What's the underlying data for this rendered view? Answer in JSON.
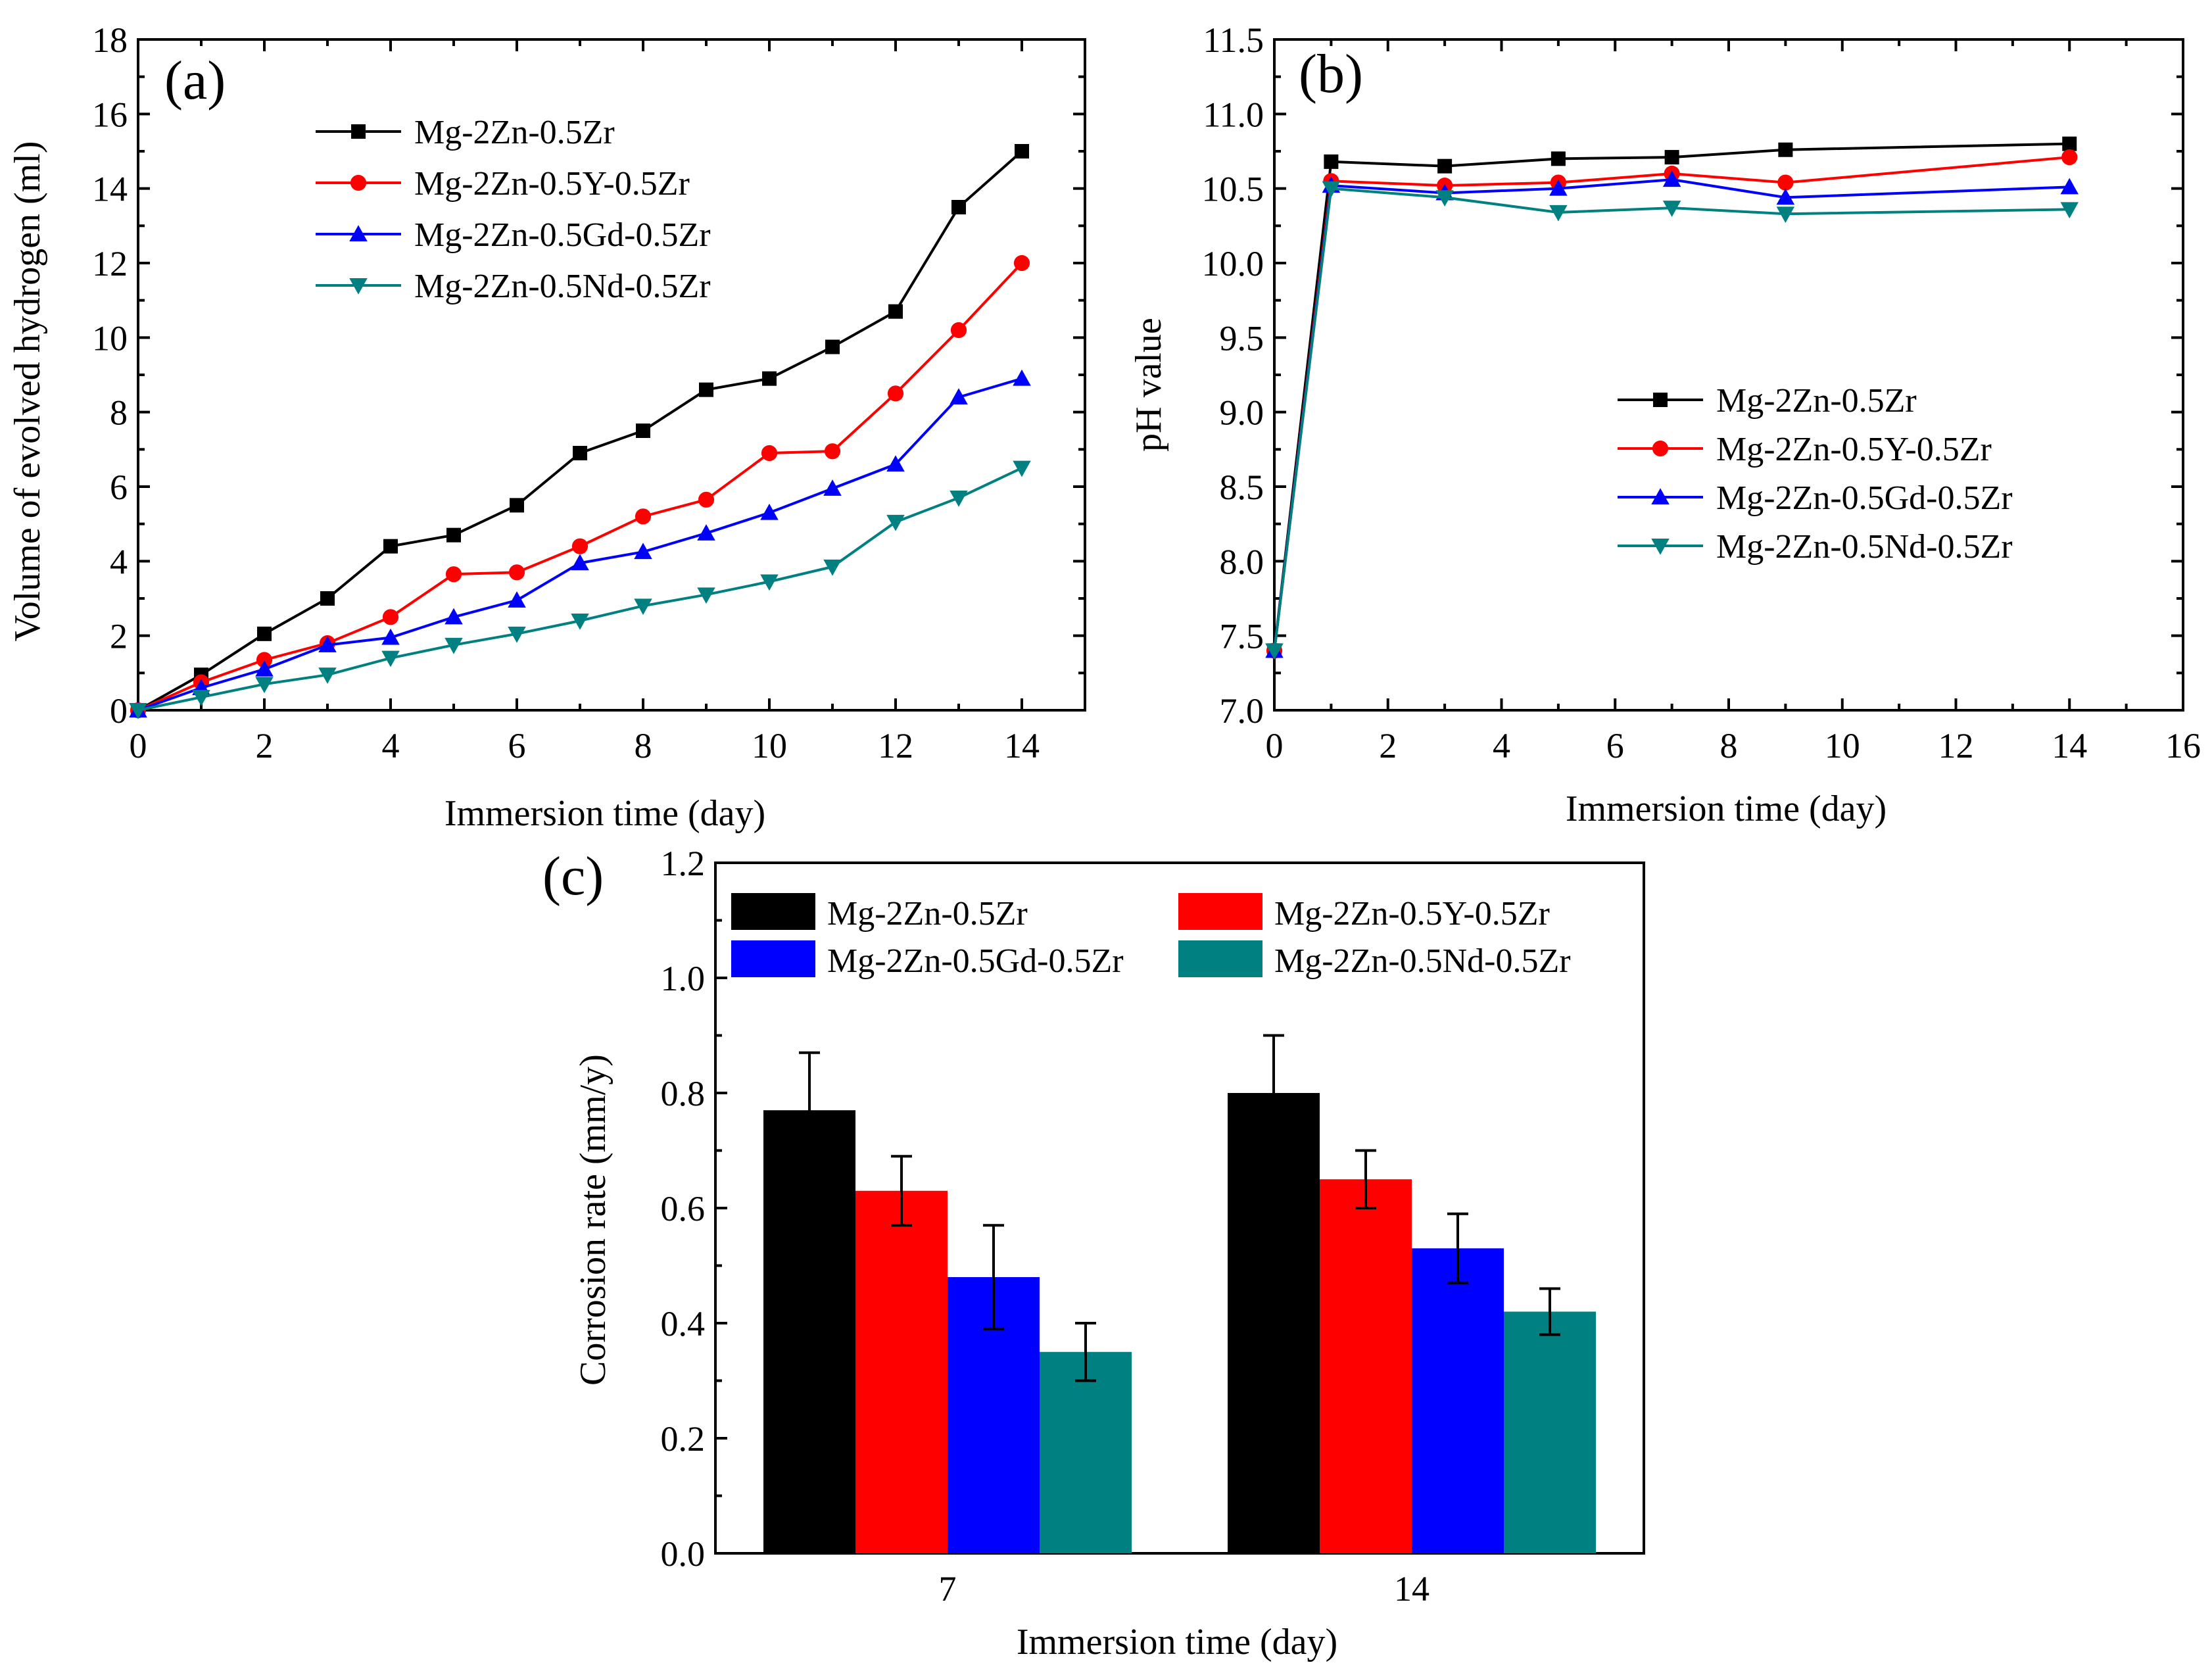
{
  "colors": {
    "Mg-2Zn-0.5Zr": "#000000",
    "Mg-2Zn-0.5Y-0.5Zr": "#ff0000",
    "Mg-2Zn-0.5Gd-0.5Zr": "#0000ff",
    "Mg-2Zn-0.5Nd-0.5Zr": "#008080"
  },
  "chart_data": [
    {
      "panel": "(a)",
      "type": "line",
      "xlabel": "Immersion time (day)",
      "ylabel": "Volume of evolved hydrogen (ml)",
      "xlim": [
        0,
        15
      ],
      "ylim": [
        0,
        18
      ],
      "xticks": [
        0,
        2,
        4,
        6,
        8,
        10,
        12,
        14
      ],
      "yticks": [
        0,
        2,
        4,
        6,
        8,
        10,
        12,
        14,
        16,
        18
      ],
      "legend_position": "top-left",
      "x": [
        0,
        1,
        2,
        3,
        4,
        5,
        6,
        7,
        8,
        9,
        10,
        11,
        12,
        13,
        14
      ],
      "series": [
        {
          "name": "Mg-2Zn-0.5Zr",
          "marker": "square",
          "values": [
            0,
            0.95,
            2.05,
            3.0,
            4.4,
            4.7,
            5.5,
            6.9,
            7.5,
            8.6,
            8.9,
            9.75,
            10.7,
            13.5,
            15.0
          ]
        },
        {
          "name": "Mg-2Zn-0.5Y-0.5Zr",
          "marker": "circle",
          "values": [
            0,
            0.75,
            1.35,
            1.8,
            2.5,
            3.65,
            3.7,
            4.4,
            5.2,
            5.65,
            6.9,
            6.95,
            8.5,
            10.2,
            12.0
          ]
        },
        {
          "name": "Mg-2Zn-0.5Gd-0.5Zr",
          "marker": "triangle-up",
          "values": [
            0,
            0.6,
            1.1,
            1.75,
            1.95,
            2.5,
            2.95,
            3.95,
            4.25,
            4.75,
            5.3,
            5.95,
            6.6,
            8.4,
            8.9
          ]
        },
        {
          "name": "Mg-2Zn-0.5Nd-0.5Zr",
          "marker": "triangle-down",
          "values": [
            0,
            0.35,
            0.7,
            0.95,
            1.4,
            1.75,
            2.05,
            2.4,
            2.8,
            3.1,
            3.45,
            3.85,
            5.05,
            5.7,
            6.5
          ]
        }
      ]
    },
    {
      "panel": "(b)",
      "type": "line",
      "xlabel": "Immersion time (day)",
      "ylabel": "pH value",
      "xlim": [
        0,
        16
      ],
      "ylim": [
        7.0,
        11.5
      ],
      "xticks": [
        0,
        2,
        4,
        6,
        8,
        10,
        12,
        14,
        16
      ],
      "yticks": [
        7.0,
        7.5,
        8.0,
        8.5,
        9.0,
        9.5,
        10.0,
        10.5,
        11.0,
        11.5
      ],
      "legend_position": "center-right",
      "x": [
        0,
        1,
        3,
        5,
        7,
        9,
        14
      ],
      "series": [
        {
          "name": "Mg-2Zn-0.5Zr",
          "marker": "square",
          "values": [
            7.4,
            10.68,
            10.65,
            10.7,
            10.71,
            10.76,
            10.8
          ]
        },
        {
          "name": "Mg-2Zn-0.5Y-0.5Zr",
          "marker": "circle",
          "values": [
            7.4,
            10.55,
            10.52,
            10.54,
            10.6,
            10.54,
            10.71
          ]
        },
        {
          "name": "Mg-2Zn-0.5Gd-0.5Zr",
          "marker": "triangle-up",
          "values": [
            7.4,
            10.52,
            10.47,
            10.5,
            10.56,
            10.44,
            10.51
          ]
        },
        {
          "name": "Mg-2Zn-0.5Nd-0.5Zr",
          "marker": "triangle-down",
          "values": [
            7.4,
            10.5,
            10.44,
            10.34,
            10.37,
            10.33,
            10.36
          ]
        }
      ]
    },
    {
      "panel": "(c)",
      "type": "bar",
      "xlabel": "Immersion time (day)",
      "ylabel": "Corrosion rate (mm/y)",
      "ylim": [
        0.0,
        1.2
      ],
      "yticks": [
        "0.0",
        "0.2",
        "0.4",
        "0.6",
        "0.8",
        "1.0",
        "1.2"
      ],
      "categories": [
        "7",
        "14"
      ],
      "legend_position": "top",
      "series": [
        {
          "name": "Mg-2Zn-0.5Zr",
          "values": [
            0.77,
            0.8
          ],
          "errors": [
            0.1,
            0.1
          ]
        },
        {
          "name": "Mg-2Zn-0.5Y-0.5Zr",
          "values": [
            0.63,
            0.65
          ],
          "errors": [
            0.06,
            0.05
          ]
        },
        {
          "name": "Mg-2Zn-0.5Gd-0.5Zr",
          "values": [
            0.48,
            0.53
          ],
          "errors": [
            0.09,
            0.06
          ]
        },
        {
          "name": "Mg-2Zn-0.5Nd-0.5Zr",
          "values": [
            0.35,
            0.42
          ],
          "errors": [
            0.05,
            0.04
          ]
        }
      ]
    }
  ]
}
